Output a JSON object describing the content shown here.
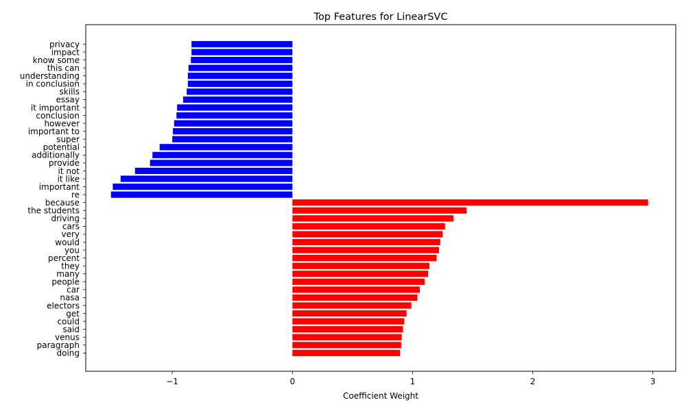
{
  "chart_data": {
    "type": "bar",
    "orientation": "horizontal",
    "title": "Top Features for LinearSVC",
    "xlabel": "Coefficient Weight",
    "ylabel": "",
    "xlim": [
      -1.72,
      3.19
    ],
    "xticks": [
      -1,
      0,
      1,
      2,
      3
    ],
    "xtick_labels": [
      "−1",
      "0",
      "1",
      "2",
      "3"
    ],
    "grid": false,
    "colors": {
      "negative": "#0000ff",
      "positive": "#ff0000"
    },
    "categories": [
      "privacy",
      "impact",
      "know some",
      "this can",
      "understanding",
      "in conclusion",
      "skills",
      "essay",
      "it important",
      "conclusion",
      "however",
      "important to",
      "super",
      "potential",
      "additionally",
      "provide",
      "it not",
      "it like",
      "important",
      "re",
      "because",
      "the students",
      "driving",
      "cars",
      "very",
      "would",
      "you",
      "percent",
      "they",
      "many",
      "people",
      "car",
      "nasa",
      "electors",
      "get",
      "could",
      "said",
      "venus",
      "paragraph",
      "doing"
    ],
    "values": [
      -0.84,
      -0.84,
      -0.845,
      -0.865,
      -0.87,
      -0.87,
      -0.88,
      -0.91,
      -0.96,
      -0.965,
      -0.985,
      -0.995,
      -1.0,
      -1.105,
      -1.165,
      -1.185,
      -1.31,
      -1.43,
      -1.495,
      -1.51,
      2.96,
      1.45,
      1.34,
      1.27,
      1.25,
      1.23,
      1.22,
      1.2,
      1.14,
      1.13,
      1.1,
      1.06,
      1.04,
      0.99,
      0.95,
      0.93,
      0.92,
      0.91,
      0.905,
      0.895
    ]
  }
}
